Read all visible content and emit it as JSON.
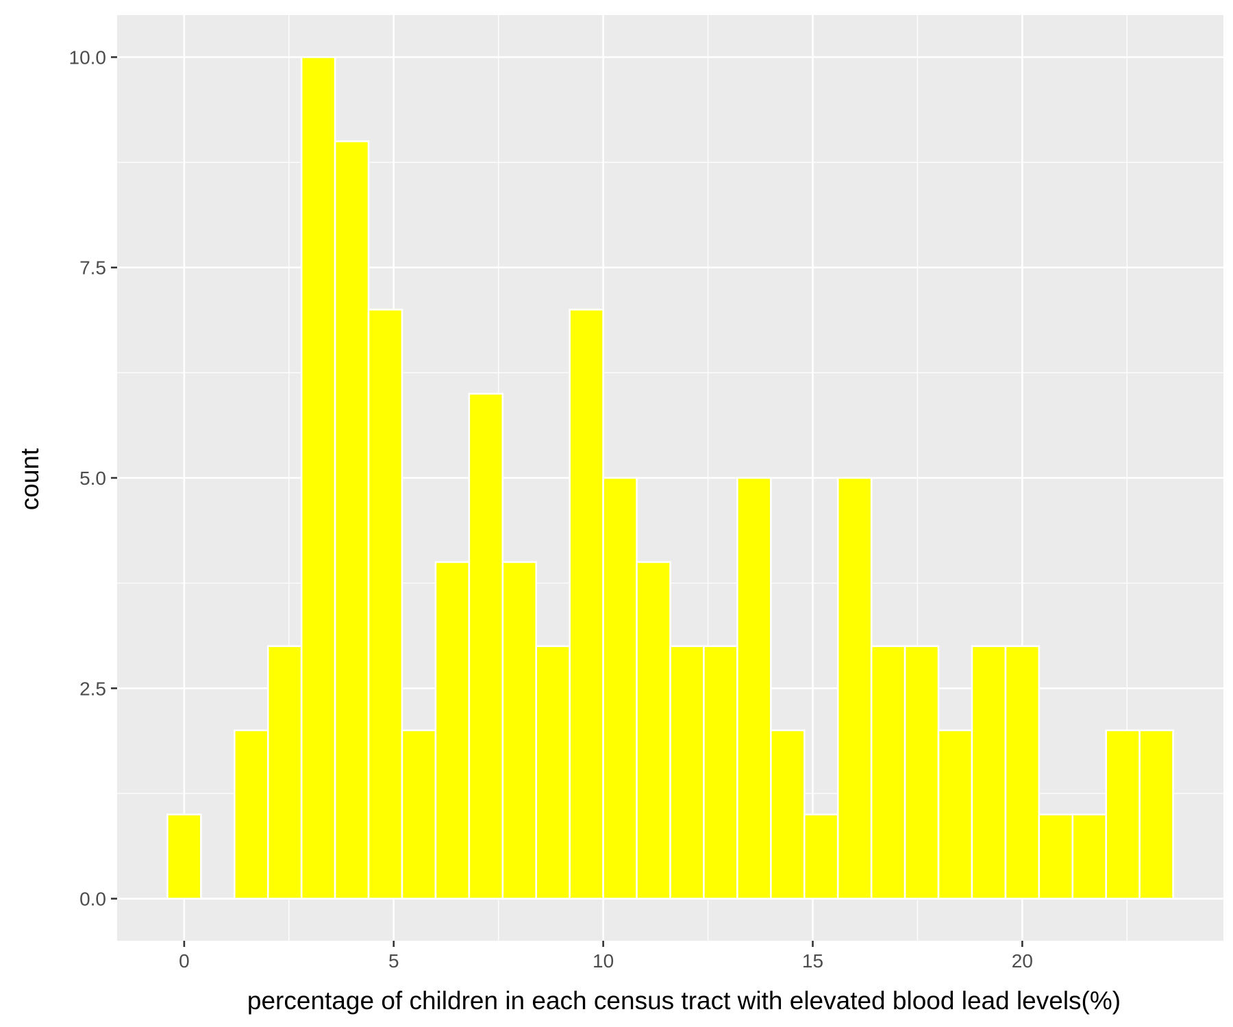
{
  "chart_data": {
    "type": "bar",
    "subtype": "histogram",
    "title": "",
    "xlabel": "percentage of children in each census tract with elevated blood lead levels(%)",
    "ylabel": "count",
    "bin_width": 0.8,
    "bins": [
      {
        "center": 0.0,
        "count": 1
      },
      {
        "center": 0.8,
        "count": 0
      },
      {
        "center": 1.6,
        "count": 2
      },
      {
        "center": 2.4,
        "count": 3
      },
      {
        "center": 3.2,
        "count": 10
      },
      {
        "center": 4.0,
        "count": 9
      },
      {
        "center": 4.8,
        "count": 7
      },
      {
        "center": 5.6,
        "count": 2
      },
      {
        "center": 6.4,
        "count": 4
      },
      {
        "center": 7.2,
        "count": 6
      },
      {
        "center": 8.0,
        "count": 4
      },
      {
        "center": 8.8,
        "count": 3
      },
      {
        "center": 9.6,
        "count": 7
      },
      {
        "center": 10.4,
        "count": 5
      },
      {
        "center": 11.2,
        "count": 4
      },
      {
        "center": 12.0,
        "count": 3
      },
      {
        "center": 12.8,
        "count": 3
      },
      {
        "center": 13.6,
        "count": 5
      },
      {
        "center": 14.4,
        "count": 2
      },
      {
        "center": 15.2,
        "count": 1
      },
      {
        "center": 16.0,
        "count": 5
      },
      {
        "center": 16.8,
        "count": 3
      },
      {
        "center": 17.6,
        "count": 3
      },
      {
        "center": 18.4,
        "count": 2
      },
      {
        "center": 19.2,
        "count": 3
      },
      {
        "center": 20.0,
        "count": 3
      },
      {
        "center": 20.8,
        "count": 1
      },
      {
        "center": 21.6,
        "count": 1
      },
      {
        "center": 22.4,
        "count": 2
      },
      {
        "center": 23.2,
        "count": 2
      }
    ],
    "xlim": [
      -1.6,
      24.8
    ],
    "ylim": [
      -0.5,
      10.5
    ],
    "x_ticks": [
      {
        "value": 0,
        "label": "0"
      },
      {
        "value": 5,
        "label": "5"
      },
      {
        "value": 10,
        "label": "10"
      },
      {
        "value": 15,
        "label": "15"
      },
      {
        "value": 20,
        "label": "20"
      }
    ],
    "y_ticks": [
      {
        "value": 0,
        "label": "0.0"
      },
      {
        "value": 2.5,
        "label": "2.5"
      },
      {
        "value": 5,
        "label": "5.0"
      },
      {
        "value": 7.5,
        "label": "7.5"
      },
      {
        "value": 10,
        "label": "10.0"
      }
    ],
    "grid": true,
    "legend": "none",
    "colors": {
      "bar_fill": "#FFFF00",
      "bar_outline": "#FFFFFF",
      "panel_background": "#EBEBEB",
      "grid": "#FFFFFF"
    }
  }
}
